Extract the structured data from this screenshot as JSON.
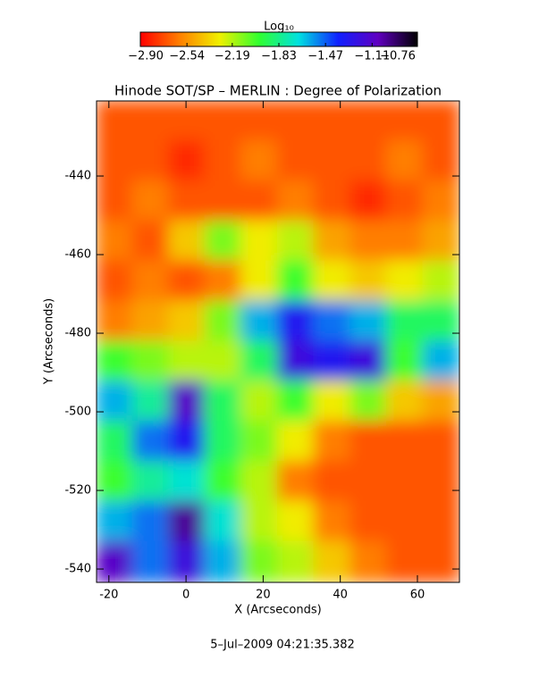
{
  "chart_data": {
    "type": "heatmap",
    "title": "Hinode SOT/SP – MERLIN : Degree of Polarization",
    "x_label": "X (Arcseconds)",
    "y_label": "Y (Arcseconds)",
    "footer": "5–Jul–2009 04:21:35.382",
    "colorbar": {
      "title": "Log₁₀",
      "lim": [
        -2.9,
        -0.76
      ],
      "ticks": [
        {
          "value": -2.9,
          "label": "−2.90"
        },
        {
          "value": -2.54,
          "label": "−2.54"
        },
        {
          "value": -2.19,
          "label": "−2.19"
        },
        {
          "value": -1.83,
          "label": "−1.83"
        },
        {
          "value": -1.47,
          "label": "−1.47"
        },
        {
          "value": -1.11,
          "label": "−1.11"
        },
        {
          "value": -0.76,
          "label": "−0.76"
        }
      ],
      "colormap": [
        "#ff0000",
        "#ff8000",
        "#f0f000",
        "#30ff30",
        "#00e0e0",
        "#1020ff",
        "#6000c0",
        "#000000"
      ]
    },
    "xlim": [
      -23.2,
      70.9
    ],
    "ylim": [
      -543.4,
      -420.9
    ],
    "xticks": [
      -20,
      0,
      20,
      40,
      60
    ],
    "yticks": [
      -440,
      -460,
      -480,
      -500,
      -520,
      -540
    ],
    "x": [
      -18.5,
      -9.1,
      0.3,
      9.7,
      19.1,
      28.5,
      37.9,
      47.4,
      56.8,
      66.2
    ],
    "y": [
      -426,
      -436.2,
      -446.4,
      -456.6,
      -466.8,
      -477,
      -487.2,
      -497.4,
      -507.6,
      -517.8,
      -528,
      -538.2
    ],
    "z": [
      [
        -2.7,
        -2.7,
        -2.7,
        -2.7,
        -2.7,
        -2.7,
        -2.7,
        -2.7,
        -2.7,
        -2.7
      ],
      [
        -2.7,
        -2.7,
        -2.8,
        -2.7,
        -2.6,
        -2.7,
        -2.7,
        -2.7,
        -2.6,
        -2.7
      ],
      [
        -2.7,
        -2.6,
        -2.7,
        -2.7,
        -2.7,
        -2.6,
        -2.7,
        -2.8,
        -2.7,
        -2.6
      ],
      [
        -2.6,
        -2.7,
        -2.4,
        -2.1,
        -2.3,
        -2.2,
        -2.5,
        -2.6,
        -2.6,
        -2.5
      ],
      [
        -2.7,
        -2.6,
        -2.7,
        -2.6,
        -2.3,
        -2.0,
        -2.3,
        -2.4,
        -2.3,
        -2.2
      ],
      [
        -2.6,
        -2.5,
        -2.4,
        -2.1,
        -1.6,
        -1.3,
        -1.5,
        -1.6,
        -1.9,
        -1.9
      ],
      [
        -2.0,
        -2.1,
        -2.2,
        -2.2,
        -1.9,
        -1.2,
        -1.3,
        -1.2,
        -2.0,
        -1.6
      ],
      [
        -1.6,
        -1.8,
        -1.1,
        -1.9,
        -2.2,
        -2.0,
        -2.3,
        -2.1,
        -2.4,
        -2.5
      ],
      [
        -1.9,
        -1.5,
        -1.3,
        -1.9,
        -2.1,
        -2.3,
        -2.6,
        -2.7,
        -2.7,
        -2.7
      ],
      [
        -2.0,
        -1.8,
        -1.7,
        -2.0,
        -2.2,
        -2.6,
        -2.7,
        -2.7,
        -2.7,
        -2.7
      ],
      [
        -1.6,
        -1.5,
        -1.0,
        -1.7,
        -2.2,
        -2.3,
        -2.6,
        -2.7,
        -2.7,
        -2.7
      ],
      [
        -1.1,
        -1.5,
        -1.2,
        -1.6,
        -2.1,
        -2.2,
        -2.4,
        -2.6,
        -2.7,
        -2.7
      ]
    ]
  }
}
